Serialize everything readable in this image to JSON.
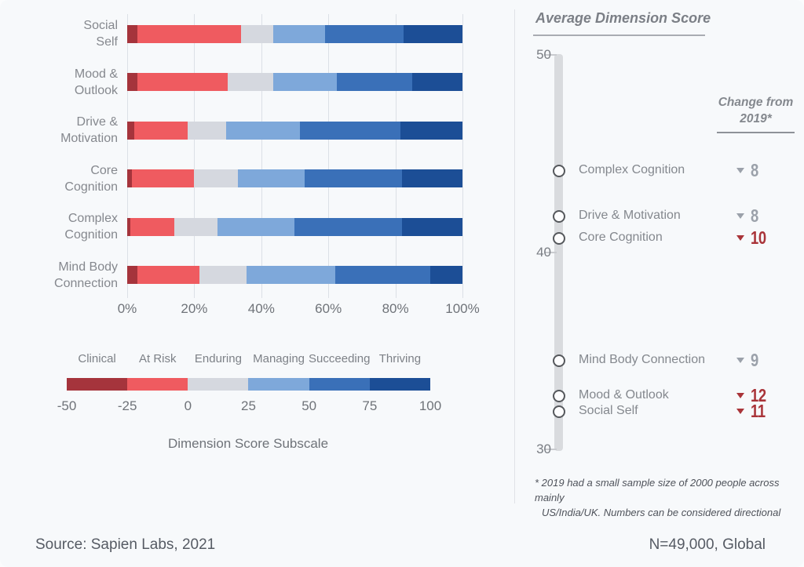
{
  "page": {
    "background": "#F7F9FB",
    "source_note": "Source: Sapien Labs, 2021",
    "sample_note": "N=49,000, Global"
  },
  "colors": {
    "clinical": "#A5343C",
    "at_risk": "#EF5B60",
    "enduring": "#D5D8DF",
    "managing": "#7EA8DA",
    "succeeding": "#3A70B8",
    "thriving": "#1C4E96",
    "change_gray": "#9BA1AA",
    "change_red": "#A93439",
    "gridline": "#DCE0E6",
    "scale_bar": "#D9DBDE",
    "marker_border": "#55585C"
  },
  "chart_data": [
    {
      "type": "bar",
      "stacked": true,
      "orientation": "horizontal",
      "grid": true,
      "xlim": [
        0,
        100
      ],
      "x_ticks": [
        "0%",
        "20%",
        "40%",
        "60%",
        "80%",
        "100%"
      ],
      "categories": [
        "Social Self",
        "Mood & Outlook",
        "Drive & Motivation",
        "Core Cognition",
        "Complex Cognition",
        "Mind Body Connection"
      ],
      "category_lines": [
        [
          "Social",
          "Self"
        ],
        [
          "Mood &",
          "Outlook"
        ],
        [
          "Drive &",
          "Motivation"
        ],
        [
          "Core",
          "Cognition"
        ],
        [
          "Complex",
          "Cognition"
        ],
        [
          "Mind Body",
          "Connection"
        ]
      ],
      "series": [
        {
          "name": "Clinical",
          "color": "#A5343C",
          "values": [
            3,
            3,
            2,
            1.5,
            1,
            3
          ]
        },
        {
          "name": "At Risk",
          "color": "#EF5B60",
          "values": [
            31,
            27,
            16,
            18.5,
            13,
            18.5
          ]
        },
        {
          "name": "Enduring",
          "color": "#D5D8DF",
          "values": [
            9.5,
            13.5,
            11.5,
            13,
            13,
            14
          ]
        },
        {
          "name": "Managing",
          "color": "#7EA8DA",
          "values": [
            15.5,
            19,
            22,
            20,
            23,
            26.5
          ]
        },
        {
          "name": "Succeeding",
          "color": "#3A70B8",
          "values": [
            23.5,
            22.5,
            30,
            29,
            32,
            28.5
          ]
        },
        {
          "name": "Thriving",
          "color": "#1C4E96",
          "values": [
            17.5,
            15,
            18.5,
            18,
            18,
            9.5
          ]
        }
      ],
      "legend": {
        "position": "bottom",
        "labels": [
          "Clinical",
          "At Risk",
          "Enduring",
          "Managing",
          "Succeeding",
          "Thriving"
        ],
        "scale_range": [
          -50,
          100
        ],
        "scale_ticks": [
          "-50",
          "-25",
          "0",
          "25",
          "50",
          "75",
          "100"
        ],
        "axis_title": "Dimension Score Subscale"
      }
    },
    {
      "type": "scatter",
      "title": "Average Dimension Score",
      "ylim": [
        30,
        50
      ],
      "y_ticks": [
        "50",
        "40",
        "30"
      ],
      "change_header": [
        "Change from",
        "2019*"
      ],
      "points": [
        {
          "label": "Complex Cognition",
          "score": 44.1,
          "change": "8",
          "change_style": "gray"
        },
        {
          "label": "Drive & Motivation",
          "score": 41.8,
          "change": "8",
          "change_style": "gray"
        },
        {
          "label": "Core Cognition",
          "score": 40.7,
          "change": "10",
          "change_style": "red"
        },
        {
          "label": "Mind Body Connection",
          "score": 34.5,
          "change": "9",
          "change_style": "gray"
        },
        {
          "label": "Mood & Outlook",
          "score": 32.7,
          "change": "12",
          "change_style": "red"
        },
        {
          "label": "Social Self",
          "score": 31.9,
          "change": "11",
          "change_style": "red"
        }
      ],
      "footnote_lines": [
        "* 2019 had a small sample size of 2000 people across mainly",
        "US/India/UK. Numbers can be considered directional"
      ]
    }
  ]
}
